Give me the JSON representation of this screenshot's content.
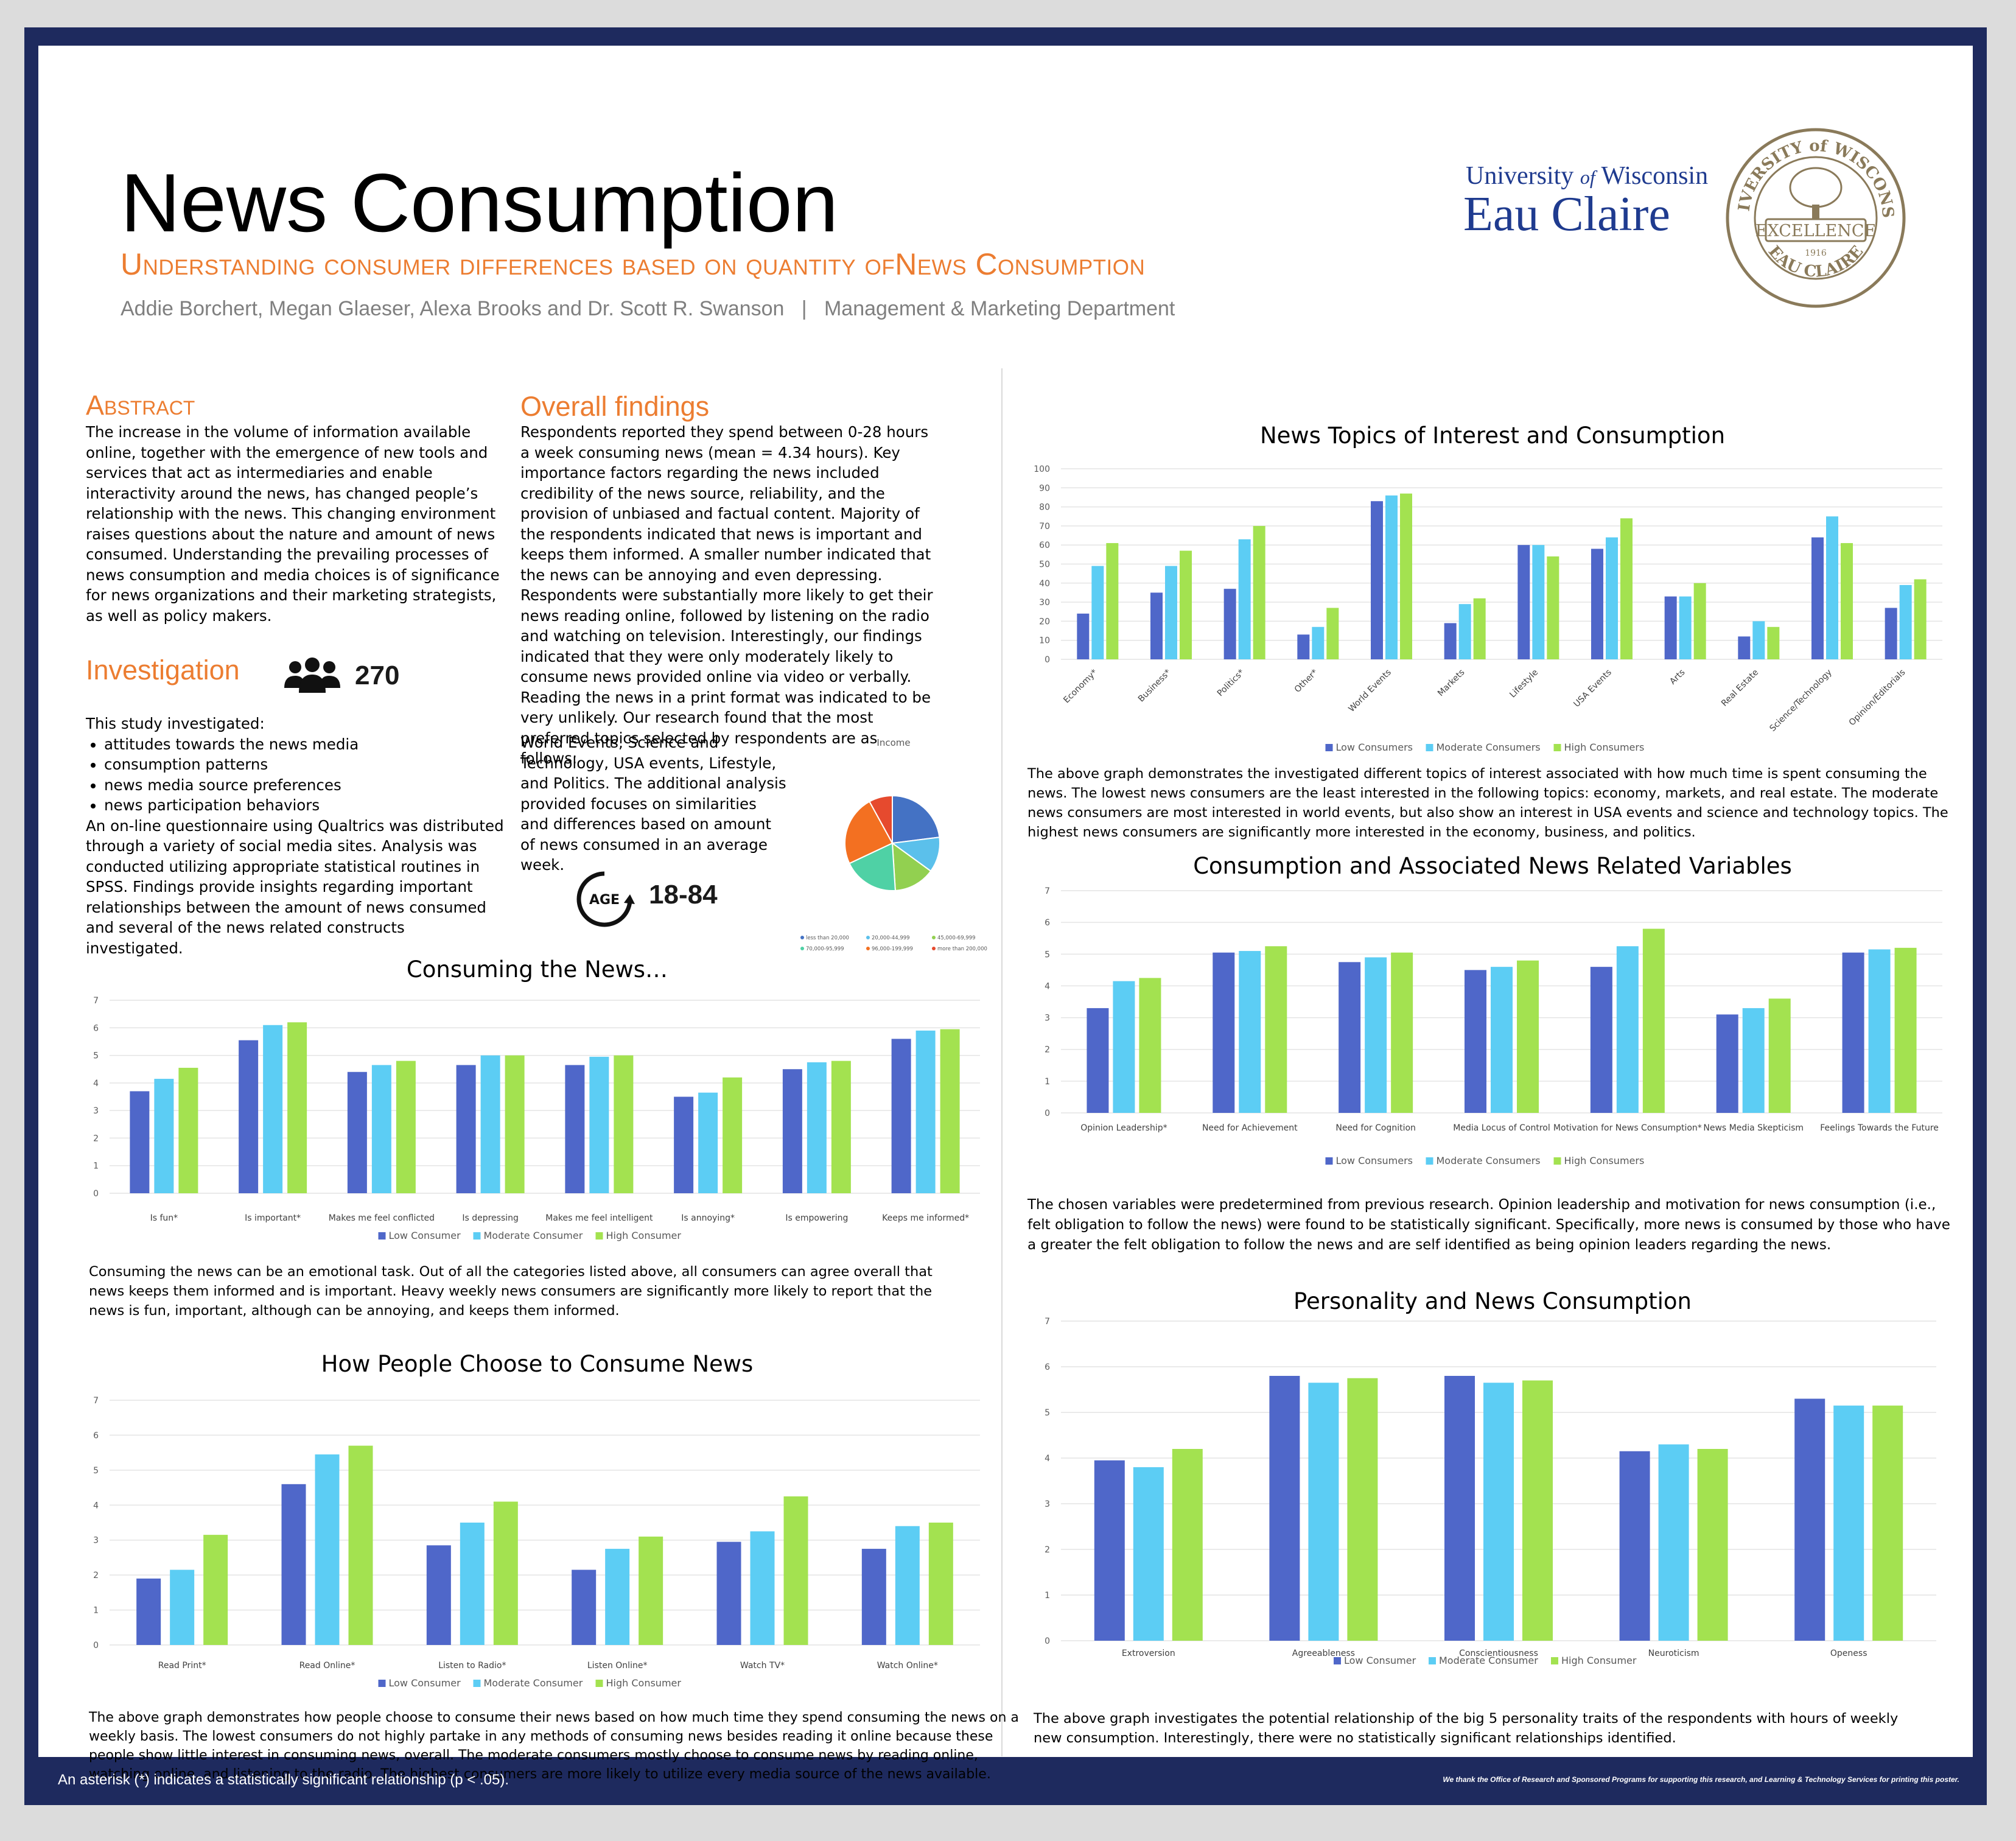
{
  "header": {
    "title": "News Consumption",
    "subtitle": "Understanding consumer differences based on quantity ofNews Consumption",
    "authors": "Addie Borchert, Megan Glaeser, Alexa Brooks and Dr. Scott R. Swanson   |   Management & Marketing Department",
    "university_line1": "University",
    "university_of": "of",
    "university_wisconsin": "Wisconsin",
    "university_line2": "Eau Claire",
    "seal_top": "UNIVERSITY of WISCONSIN",
    "seal_center": "EXCELLENCE",
    "seal_bottom": "EAU CLAIRE",
    "seal_year": "1916"
  },
  "abstract": {
    "heading": "Abstract",
    "text": "The increase in the volume of information available online, together with the emergence of new tools and services that act as intermediaries and enable interactivity around the news, has changed people’s relationship with the news. This changing environment raises questions about the nature and amount of news consumed. Understanding the prevailing processes of news consumption and media choices is of significance for news organizations and their marketing strategists, as well as policy makers."
  },
  "investigation": {
    "heading": "Investigation",
    "participants": "270",
    "intro": "This study investigated:",
    "items": [
      "attitudes towards the news media",
      "consumption patterns",
      "news media source preferences",
      "news participation behaviors"
    ],
    "text": "An on-line questionnaire using Qualtrics was distributed through a variety of social media sites. Analysis was conducted utilizing appropriate statistical routines in SPSS. Findings provide insights regarding important relationships between the amount of news consumed and several of the news related constructs investigated."
  },
  "overall": {
    "heading": "Overall findings",
    "text": "Respondents reported they spend between 0-28 hours a week consuming news (mean = 4.34 hours). Key importance factors regarding the news included credibility of the news source, reliability, and the provision of unbiased and factual content. Majority of the respondents indicated that news is important and keeps them informed. A smaller number indicated that the news can be annoying and even depressing. Respondents were substantially more likely to get their news reading online, followed by listening on the radio and watching on television. Interestingly, our findings indicated that they were only moderately likely to consume news provided online via video or verbally. Reading the news in a print format was indicated to be very unlikely. Our research found that the most preferred topics selected by respondents are as follows:",
    "tail": "World Events, Science and Technology, USA events, Lifestyle, and Politics. The additional analysis provided focuses on similarities and differences based on amount of news consumed in an average week.",
    "age_label": "AGE",
    "age_range": "18-84"
  },
  "income_pie": {
    "title": "Income",
    "slices": [
      {
        "label": "less than 20,000",
        "value": 23,
        "color": "#4472c4"
      },
      {
        "label": "20,000-44,999",
        "value": 12,
        "color": "#5bc0eb"
      },
      {
        "label": "45,000-69,999",
        "value": 14,
        "color": "#92d050"
      },
      {
        "label": "70,000-95,999",
        "value": 19,
        "color": "#4fd1a5"
      },
      {
        "label": "96,000-199,999",
        "value": 24,
        "color": "#f37021"
      },
      {
        "label": "more than 200,000",
        "value": 8,
        "color": "#e64a2e"
      }
    ]
  },
  "chart_data": [
    {
      "id": "consuming",
      "type": "bar",
      "title": "Consuming the News…",
      "ylim": [
        0,
        7
      ],
      "categories": [
        "Is fun*",
        "Is important*",
        "Makes me feel conflicted",
        "Is depressing",
        "Makes me feel intelligent",
        "Is annoying*",
        "Is empowering",
        "Keeps me informed*"
      ],
      "series": [
        {
          "name": "Low Consumer",
          "color": "#4f67c9",
          "values": [
            3.7,
            5.55,
            4.4,
            4.65,
            4.65,
            3.5,
            4.5,
            5.6
          ]
        },
        {
          "name": "Moderate Consumer",
          "color": "#5ccdf4",
          "values": [
            4.15,
            6.1,
            4.65,
            5.0,
            4.95,
            3.65,
            4.75,
            5.9
          ]
        },
        {
          "name": "High Consumer",
          "color": "#a3e250",
          "values": [
            4.55,
            6.2,
            4.8,
            5.0,
            5.0,
            4.2,
            4.8,
            5.95
          ]
        }
      ]
    },
    {
      "id": "how",
      "type": "bar",
      "title": "How People Choose to Consume News",
      "ylim": [
        0,
        7
      ],
      "categories": [
        "Read Print*",
        "Read Online*",
        "Listen to Radio*",
        "Listen Online*",
        "Watch TV*",
        "Watch Online*"
      ],
      "series": [
        {
          "name": "Low Consumer",
          "color": "#4f67c9",
          "values": [
            1.9,
            4.6,
            2.85,
            2.15,
            2.95,
            2.75
          ]
        },
        {
          "name": "Moderate Consumer",
          "color": "#5ccdf4",
          "values": [
            2.15,
            5.45,
            3.5,
            2.75,
            3.25,
            3.4
          ]
        },
        {
          "name": "High Consumer",
          "color": "#a3e250",
          "values": [
            3.15,
            5.7,
            4.1,
            3.1,
            4.25,
            3.5
          ]
        }
      ]
    },
    {
      "id": "topics",
      "type": "bar",
      "title": "News Topics of Interest and Consumption",
      "ylim": [
        0,
        100
      ],
      "categories": [
        "Economy*",
        "Business*",
        "Politics*",
        "Other*",
        "World Events",
        "Markets",
        "Lifestyle",
        "USA Events",
        "Arts",
        "Real Estate",
        "Science/Technology",
        "Opinion/Editorials"
      ],
      "series": [
        {
          "name": "Low Consumers",
          "color": "#4f67c9",
          "values": [
            24,
            35,
            37,
            13,
            83,
            19,
            60,
            58,
            33,
            12,
            64,
            27
          ]
        },
        {
          "name": "Moderate Consumers",
          "color": "#5ccdf4",
          "values": [
            49,
            49,
            63,
            17,
            86,
            29,
            60,
            64,
            33,
            20,
            75,
            39
          ]
        },
        {
          "name": "High Consumers",
          "color": "#a3e250",
          "values": [
            61,
            57,
            70,
            27,
            87,
            32,
            54,
            74,
            40,
            17,
            61,
            42
          ]
        }
      ]
    },
    {
      "id": "variables",
      "type": "bar",
      "title": "Consumption and Associated News Related Variables",
      "ylim": [
        0,
        7
      ],
      "categories": [
        "Opinion Leadership*",
        "Need for Achievement",
        "Need for Cognition",
        "Media Locus of Control",
        "Motivation for News Consumption*",
        "News Media Skepticism",
        "Feelings Towards the Future"
      ],
      "series": [
        {
          "name": "Low Consumers",
          "color": "#4f67c9",
          "values": [
            3.3,
            5.05,
            4.75,
            4.5,
            4.6,
            3.1,
            5.05
          ]
        },
        {
          "name": "Moderate Consumers",
          "color": "#5ccdf4",
          "values": [
            4.15,
            5.1,
            4.9,
            4.6,
            5.25,
            3.3,
            5.15
          ]
        },
        {
          "name": "High Consumers",
          "color": "#a3e250",
          "values": [
            4.25,
            5.25,
            5.05,
            4.8,
            5.8,
            3.6,
            5.2
          ]
        }
      ]
    },
    {
      "id": "personality",
      "type": "bar",
      "title": "Personality and News Consumption",
      "ylim": [
        0,
        7
      ],
      "categories": [
        "Extroversion",
        "Agreeableness",
        "Conscientiousness",
        "Neuroticism",
        "Openess"
      ],
      "series": [
        {
          "name": "Low Consumer",
          "color": "#4f67c9",
          "values": [
            3.95,
            5.8,
            5.8,
            4.15,
            5.3
          ]
        },
        {
          "name": "Moderate Consumer",
          "color": "#5ccdf4",
          "values": [
            3.8,
            5.65,
            5.65,
            4.3,
            5.15
          ]
        },
        {
          "name": "High Consumer",
          "color": "#a3e250",
          "values": [
            4.2,
            5.75,
            5.7,
            4.2,
            5.15
          ]
        }
      ]
    }
  ],
  "captions": {
    "consuming": "Consuming the news can be an emotional task. Out of all the categories listed above, all consumers can agree overall that news keeps them informed and is important. Heavy weekly news consumers are significantly more likely to report that the news is fun, important, although can be annoying, and keeps them informed.",
    "how": "The above graph demonstrates how people choose to consume their news based on how much time they spend consuming the news on a weekly basis. The lowest consumers do not highly partake in any methods of consuming news besides reading it online because these people show little interest in consuming news, overall. The moderate consumers mostly choose to consume news by reading online, watching online, and listening to the radio. The highest consumers are more likely to utilize every media source of the news available.",
    "topics": "The above graph demonstrates the investigated different topics of interest associated with how much time is spent consuming the news. The lowest news consumers are the least interested in the following topics: economy, markets, and real estate. The moderate news consumers are most interested in world events, but also show an interest in USA events and science and technology topics. The highest news consumers are significantly more interested in the economy, business, and politics.",
    "variables": "The chosen variables were predetermined from previous research. Opinion leadership and motivation for news consumption (i.e., felt obligation to follow the news) were found to be statistically significant. Specifically, more news is consumed by those who have a greater the felt obligation to follow the news  and are self identified as being opinion leaders regarding the news.",
    "personality": "The above graph investigates the potential relationship of the big 5 personality traits of the respondents with hours of weekly new consumption. Interestingly, there were no statistically significant relationships identified."
  },
  "footer": {
    "left": "An asterisk (*) indicates a statistically significant relationship (p < .05).",
    "right": "We thank the Office of Research and Sponsored Programs for supporting this research, and Learning & Technology Services for printing this poster."
  }
}
